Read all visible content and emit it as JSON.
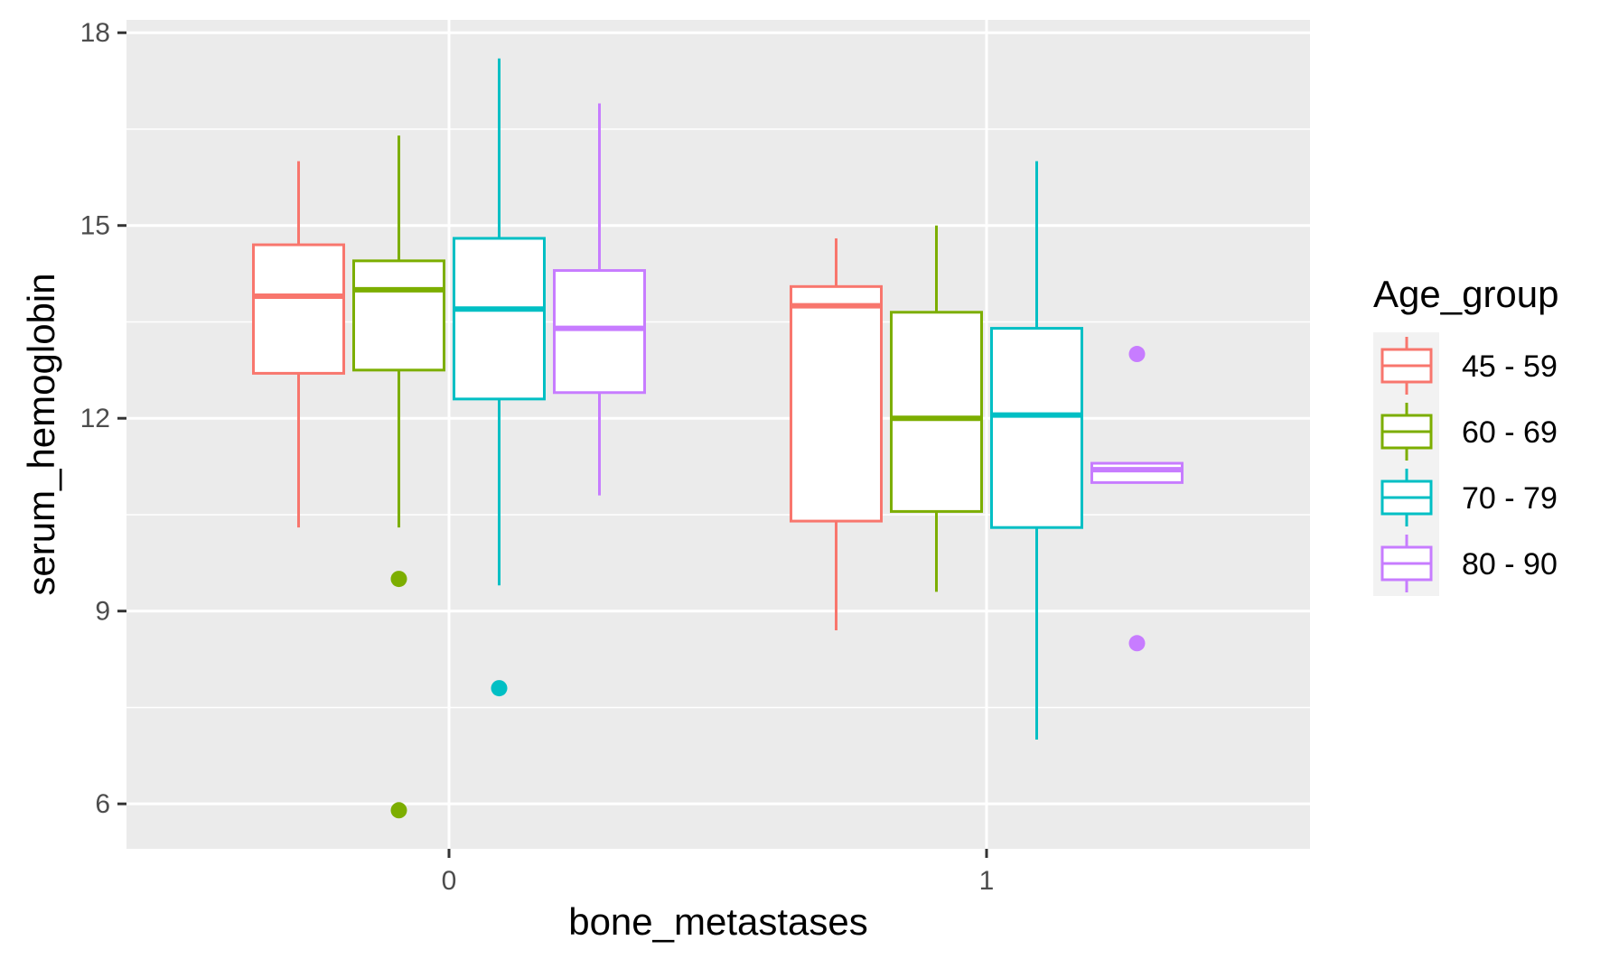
{
  "chart_data": {
    "type": "boxplot",
    "xlabel": "bone_metastases",
    "ylabel": "serum_hemoglobin",
    "categories": [
      "0",
      "1"
    ],
    "ylim": [
      5.3,
      18.2
    ],
    "yticks": [
      6,
      9,
      12,
      15,
      18
    ],
    "grid": true,
    "panel_background": "#ebebeb",
    "legend": {
      "title": "Age_group",
      "position": "right"
    },
    "series": [
      {
        "name": "45 - 59",
        "color": "#f8766d",
        "boxes": [
          {
            "category": "0",
            "whisker_low": 10.3,
            "q1": 12.7,
            "median": 13.9,
            "q3": 14.7,
            "whisker_high": 16.0,
            "outliers": []
          },
          {
            "category": "1",
            "whisker_low": 8.7,
            "q1": 10.4,
            "median": 13.75,
            "q3": 14.05,
            "whisker_high": 14.8,
            "outliers": []
          }
        ]
      },
      {
        "name": "60 - 69",
        "color": "#7cae00",
        "boxes": [
          {
            "category": "0",
            "whisker_low": 10.3,
            "q1": 12.75,
            "median": 14.0,
            "q3": 14.45,
            "whisker_high": 16.4,
            "outliers": [
              9.5,
              5.9
            ]
          },
          {
            "category": "1",
            "whisker_low": 9.3,
            "q1": 10.55,
            "median": 12.0,
            "q3": 13.65,
            "whisker_high": 15.0,
            "outliers": []
          }
        ]
      },
      {
        "name": "70 - 79",
        "color": "#00bfc4",
        "boxes": [
          {
            "category": "0",
            "whisker_low": 9.4,
            "q1": 12.3,
            "median": 13.7,
            "q3": 14.8,
            "whisker_high": 17.6,
            "outliers": [
              7.8
            ]
          },
          {
            "category": "1",
            "whisker_low": 7.0,
            "q1": 10.3,
            "median": 12.05,
            "q3": 13.4,
            "whisker_high": 16.0,
            "outliers": []
          }
        ]
      },
      {
        "name": "80 - 90",
        "color": "#c77cff",
        "boxes": [
          {
            "category": "0",
            "whisker_low": 10.8,
            "q1": 12.4,
            "median": 13.4,
            "q3": 14.3,
            "whisker_high": 16.9,
            "outliers": []
          },
          {
            "category": "1",
            "whisker_low": 11.0,
            "q1": 11.0,
            "median": 11.2,
            "q3": 11.3,
            "whisker_high": 11.3,
            "outliers": [
              13.0,
              8.5
            ]
          }
        ]
      }
    ]
  }
}
